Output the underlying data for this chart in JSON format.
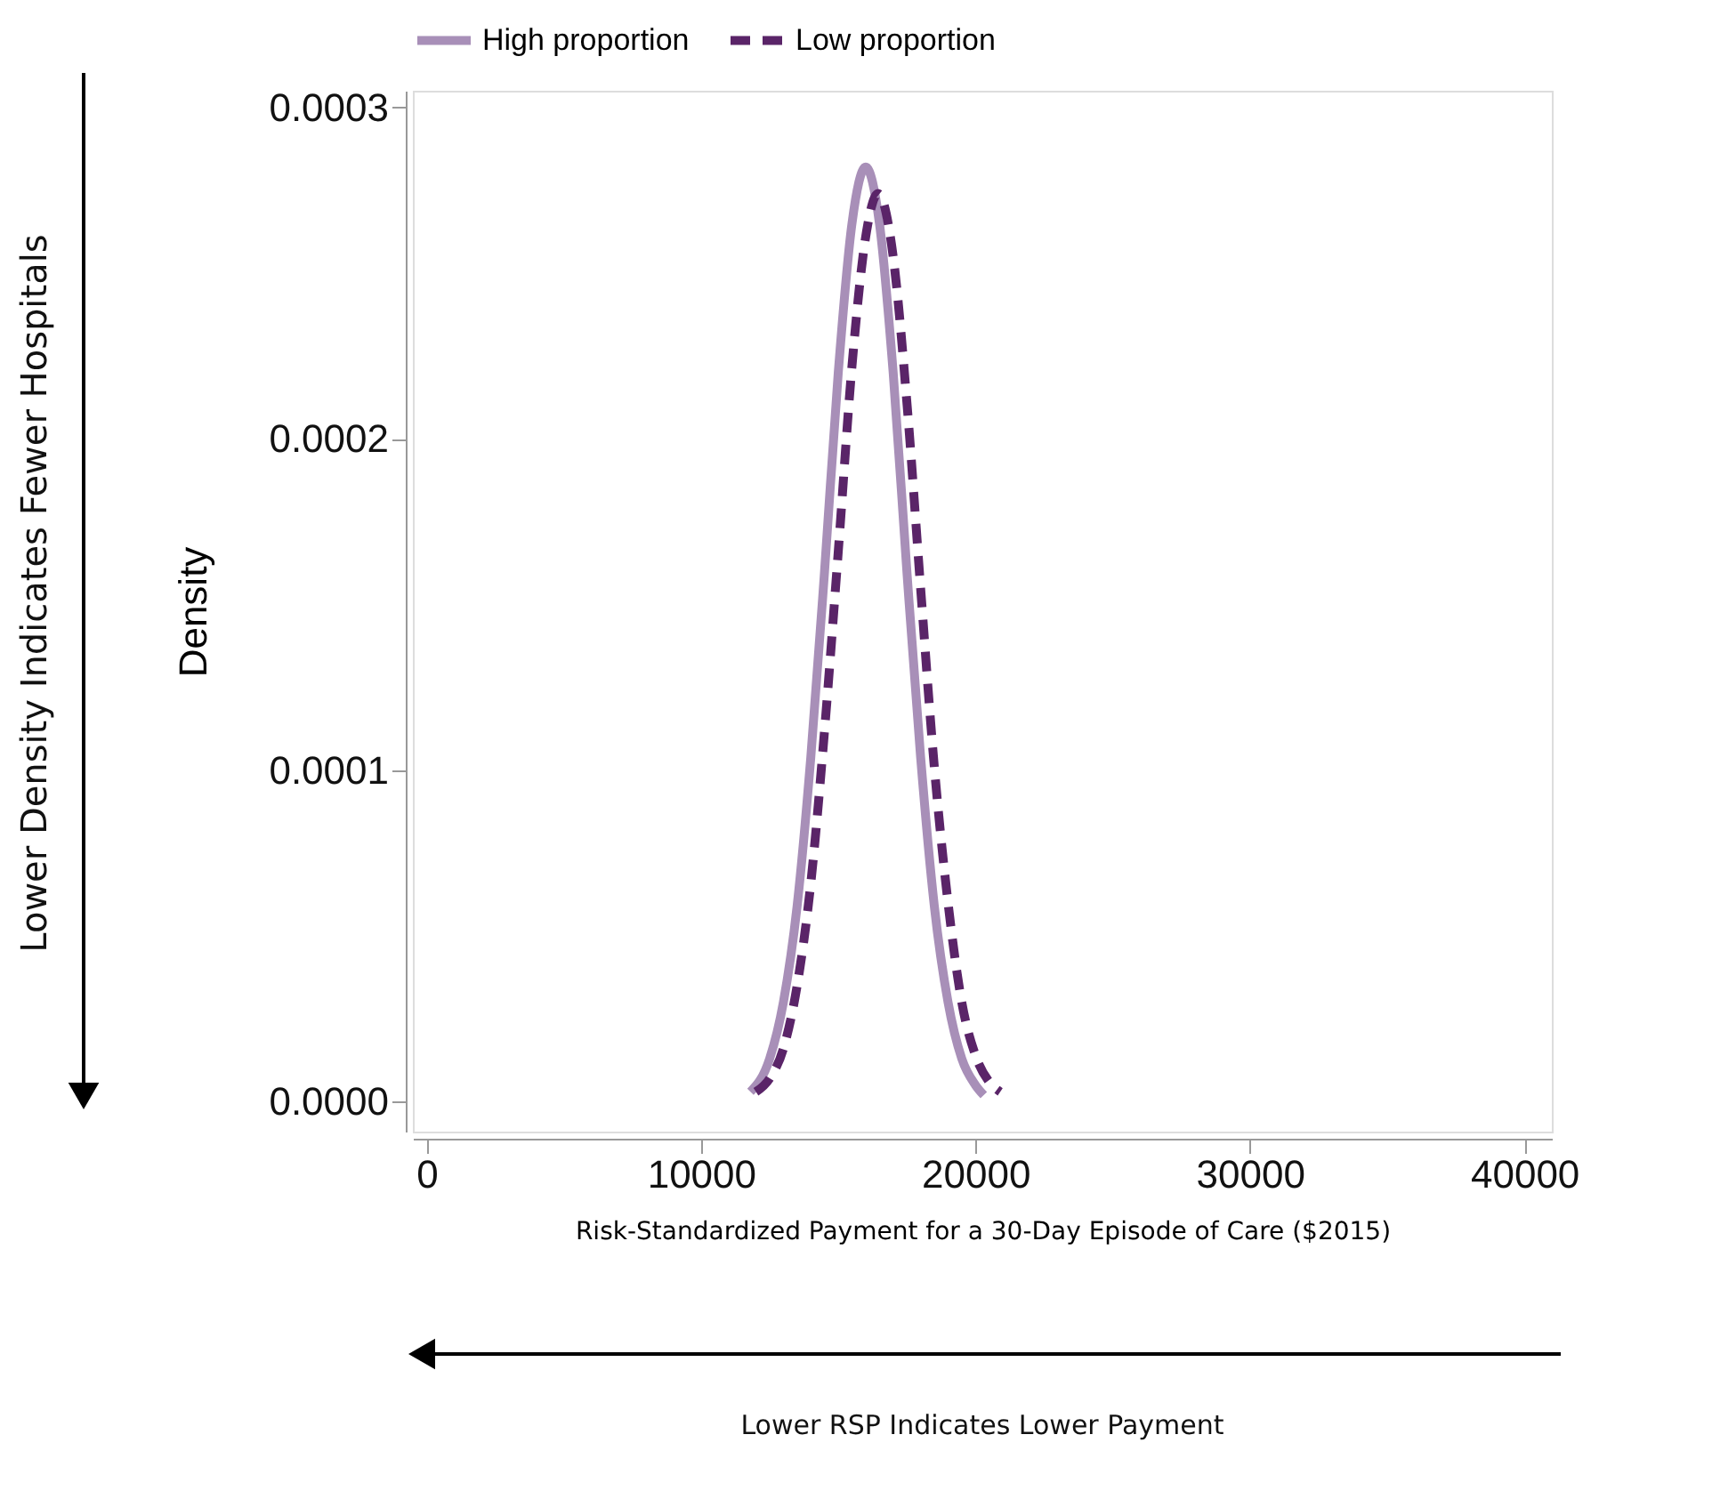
{
  "chart_data": {
    "type": "line",
    "xlabel": "Risk-Standardized Payment for a 30-Day Episode of Care ($2015)",
    "ylabel": "Density",
    "annotations": [
      "Lower Density Indicates Fewer Hospitals",
      "Lower RSP Indicates Lower Payment"
    ],
    "xlim": [
      -500,
      41000
    ],
    "ylim": [
      -9e-06,
      0.000305
    ],
    "xticks": [
      0,
      10000,
      20000,
      30000,
      40000
    ],
    "yticks": [
      {
        "value": 0,
        "label": "0.0000"
      },
      {
        "value": 0.0001,
        "label": "0.0001"
      },
      {
        "value": 0.0002,
        "label": "0.0002"
      },
      {
        "value": 0.0003,
        "label": "0.0003"
      }
    ],
    "legend": "top",
    "grid": false,
    "series": [
      {
        "name": "High proportion",
        "color": "#a88fb8",
        "line_style": "solid",
        "x": [
          11800,
          12500,
          13000,
          13500,
          14000,
          14500,
          15000,
          15500,
          16000,
          16500,
          17000,
          17500,
          18000,
          18500,
          19000,
          19500,
          20000,
          20300
        ],
        "values": [
          3e-06,
          1.3e-05,
          3e-05,
          5.9e-05,
          0.000104,
          0.00016,
          0.00022,
          0.000265,
          0.000282,
          0.000265,
          0.00022,
          0.00016,
          0.000104,
          5.9e-05,
          3e-05,
          1.3e-05,
          5e-06,
          2e-06
        ]
      },
      {
        "name": "Low proportion",
        "color": "#5a2468",
        "line_style": "dashed",
        "x": [
          12000,
          12500,
          13000,
          13500,
          14000,
          14500,
          15000,
          15500,
          16000,
          16450,
          17000,
          17500,
          18000,
          18500,
          19000,
          19500,
          20000,
          20500,
          20900
        ],
        "values": [
          3e-06,
          7e-06,
          1.6e-05,
          3.5e-05,
          6.6e-05,
          0.000112,
          0.000166,
          0.000222,
          0.000261,
          0.000274,
          0.000255,
          0.000211,
          0.000155,
          0.000101,
          6e-05,
          3e-05,
          1.4e-05,
          6e-06,
          3e-06
        ]
      }
    ]
  }
}
